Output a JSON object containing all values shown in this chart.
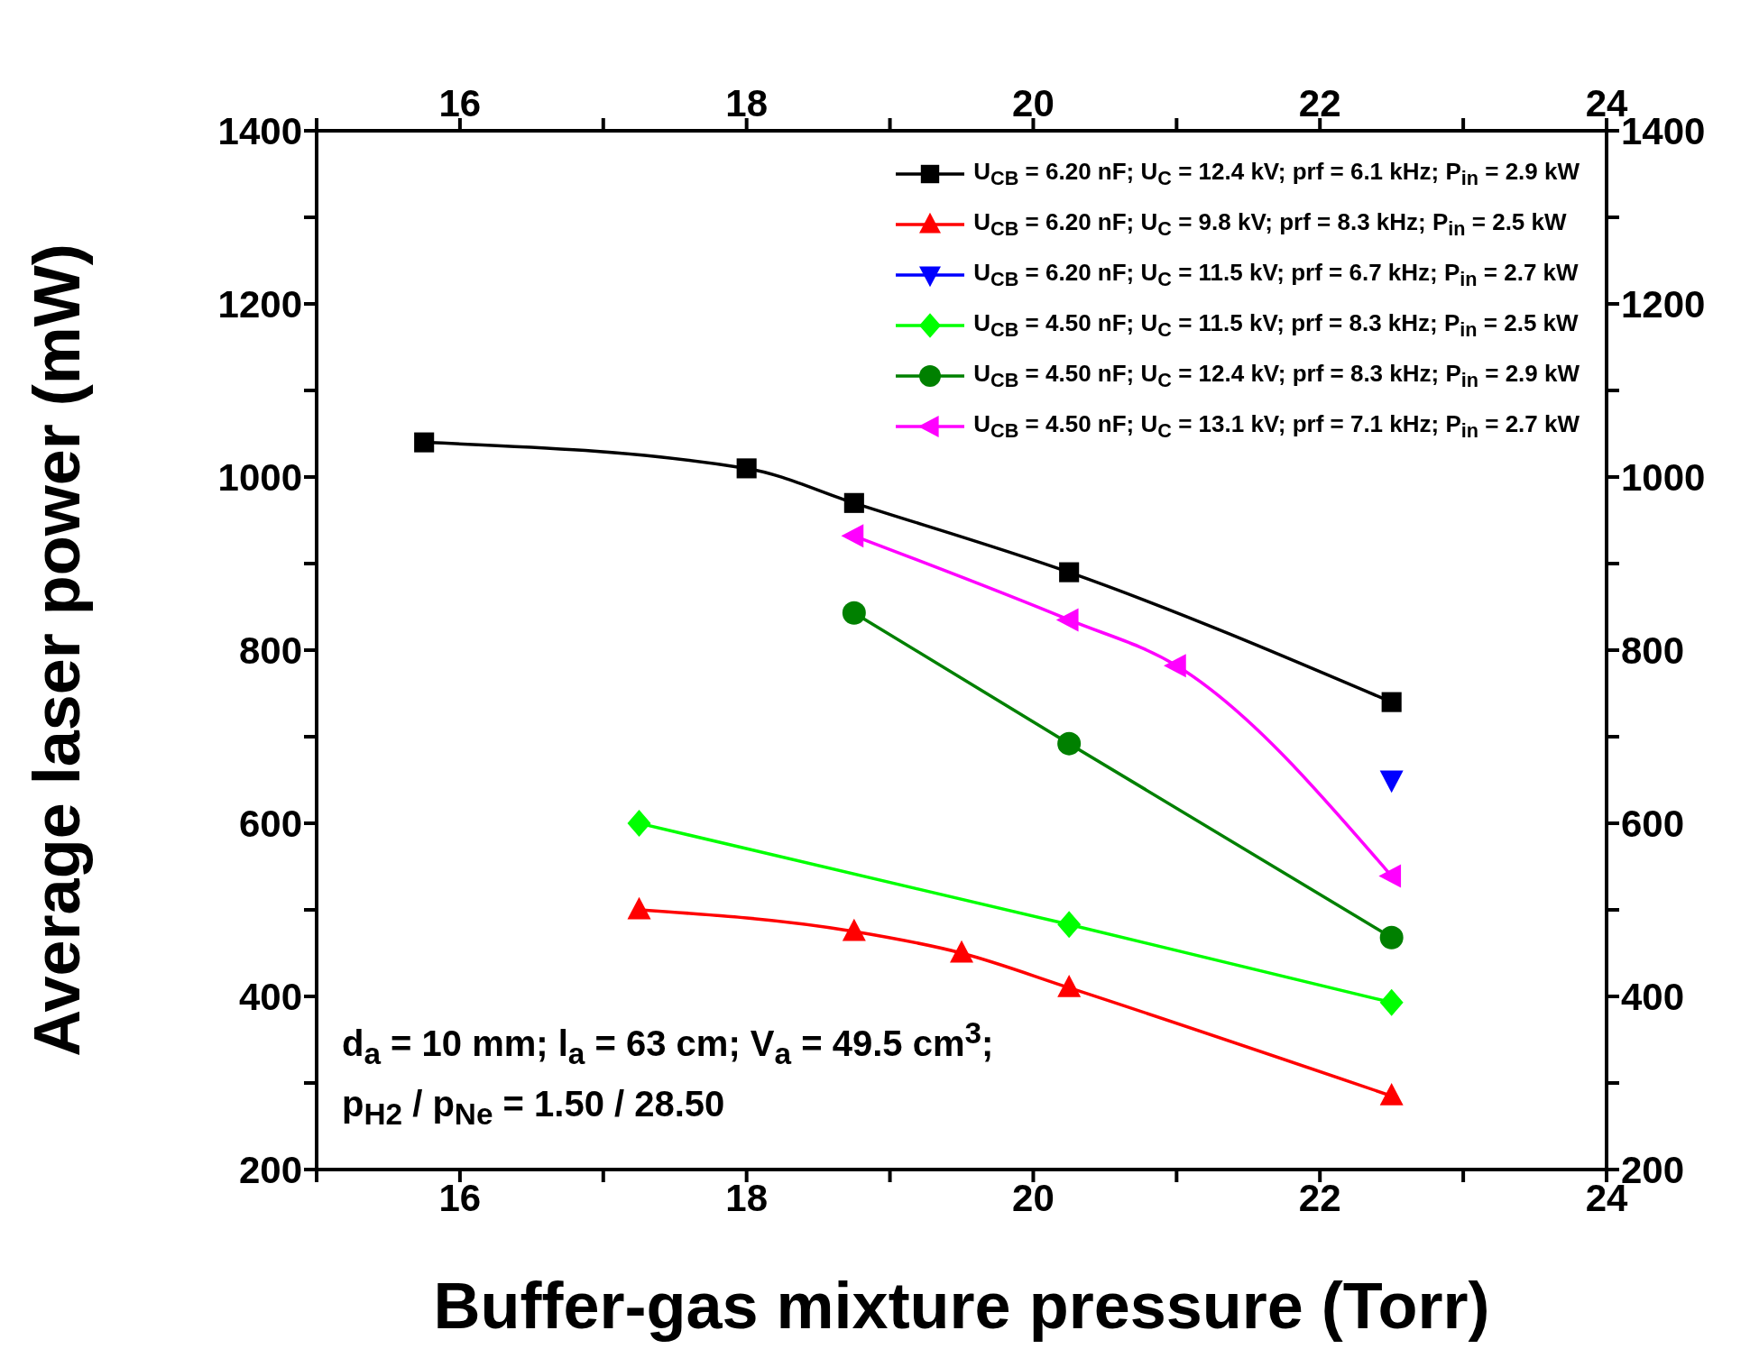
{
  "chart_data": {
    "type": "line",
    "xlabel": "Buffer-gas mixture pressure (Torr)",
    "ylabel": "Average laser power (mW)",
    "xlim": [
      15,
      24
    ],
    "xticks": [
      {
        "value": 15,
        "label": null
      },
      16,
      {
        "value": 17,
        "label": null
      },
      18,
      {
        "value": 19,
        "label": null
      },
      20,
      {
        "value": 21,
        "label": null
      },
      22,
      {
        "value": 23,
        "label": null
      },
      24
    ],
    "x2lim": [
      15,
      24
    ],
    "x2ticks": [
      {
        "value": 15,
        "label": null
      },
      16,
      {
        "value": 17,
        "label": null
      },
      18,
      {
        "value": 19,
        "label": null
      },
      20,
      {
        "value": 21,
        "label": null
      },
      22,
      {
        "value": 23,
        "label": null
      },
      24
    ],
    "ylim": [
      200,
      1400
    ],
    "yticks": [
      200,
      {
        "value": 300,
        "label": null
      },
      400,
      {
        "value": 500,
        "label": null
      },
      600,
      {
        "value": 700,
        "label": null
      },
      800,
      {
        "value": 900,
        "label": null
      },
      1000,
      {
        "value": 1100,
        "label": null
      },
      1200,
      {
        "value": 1300,
        "label": null
      },
      1400
    ],
    "y2lim": [
      200,
      1400
    ],
    "y2ticks": [
      200,
      {
        "value": 300,
        "label": null
      },
      400,
      {
        "value": 500,
        "label": null
      },
      600,
      {
        "value": 700,
        "label": null
      },
      800,
      {
        "value": 900,
        "label": null
      },
      1000,
      {
        "value": 1100,
        "label": null
      },
      1200,
      {
        "value": 1300,
        "label": null
      },
      1400
    ],
    "grid": false,
    "legend": "top right",
    "line_style": "solid",
    "series": [
      {
        "name": "U$_{CB}$ = 6.20 nF; U$_{C}$ = 12.4 kV; prf = 6.1 kHz; P$_{in}$ = 2.9 kW",
        "color": "#000000",
        "marker": "square",
        "x": [
          15.75,
          18,
          18.75,
          20.25,
          22.5
        ],
        "values": [
          1040,
          1010,
          970,
          890,
          740
        ]
      },
      {
        "name": "U$_{CB}$ = 6.20 nF; U$_{C}$ = 9.8 kV; prf = 8.3 kHz; P$_{in}$ = 2.5 kW",
        "color": "#ff0000",
        "marker": "triangle",
        "x": [
          17.25,
          18.75,
          19.5,
          20.25,
          22.5
        ],
        "values": [
          500,
          475,
          450,
          410,
          285
        ]
      },
      {
        "name": "U$_{CB}$ = 6.20 nF; U$_{C}$ = 11.5 kV; prf = 6.7 kHz; P$_{in}$ = 2.7 kW",
        "color": "#0000ff",
        "marker": "triangle-down",
        "x": [
          22.5
        ],
        "values": [
          650
        ]
      },
      {
        "name": "U$_{CB}$ = 4.50 nF; U$_{C}$ = 11.5 kV; prf = 8.3 kHz; P$_{in}$ = 2.5 kW",
        "color": "#00ff00",
        "marker": "diamond",
        "x": [
          17.25,
          20.25,
          22.5
        ],
        "values": [
          600,
          483,
          393
        ]
      },
      {
        "name": "U$_{CB}$ = 4.50 nF; U$_{C}$ = 12.4 kV; prf = 8.3 kHz; P$_{in}$ = 2.9 kW",
        "color": "#008000",
        "marker": "circle",
        "x": [
          18.75,
          20.25,
          22.5
        ],
        "values": [
          843,
          692,
          468
        ]
      },
      {
        "name": "U$_{CB}$ = 4.50 nF; U$_{C}$ = 13.1 kV; prf = 7.1 kHz; P$_{in}$ = 2.7 kW",
        "color": "#ff00ff",
        "marker": "triangle-left",
        "x": [
          18.75,
          20.25,
          21,
          22.5
        ],
        "values": [
          932,
          835,
          782,
          539
        ]
      }
    ],
    "annotations": [
      "d$_{a}$ = 10 mm; l$_{a}$ = 63 cm; V$_{a}$ = 49.5 cm$^{3}$;",
      "p$_{H2}$ / p$_{Ne}$ = 1.50 / 28.50"
    ]
  }
}
